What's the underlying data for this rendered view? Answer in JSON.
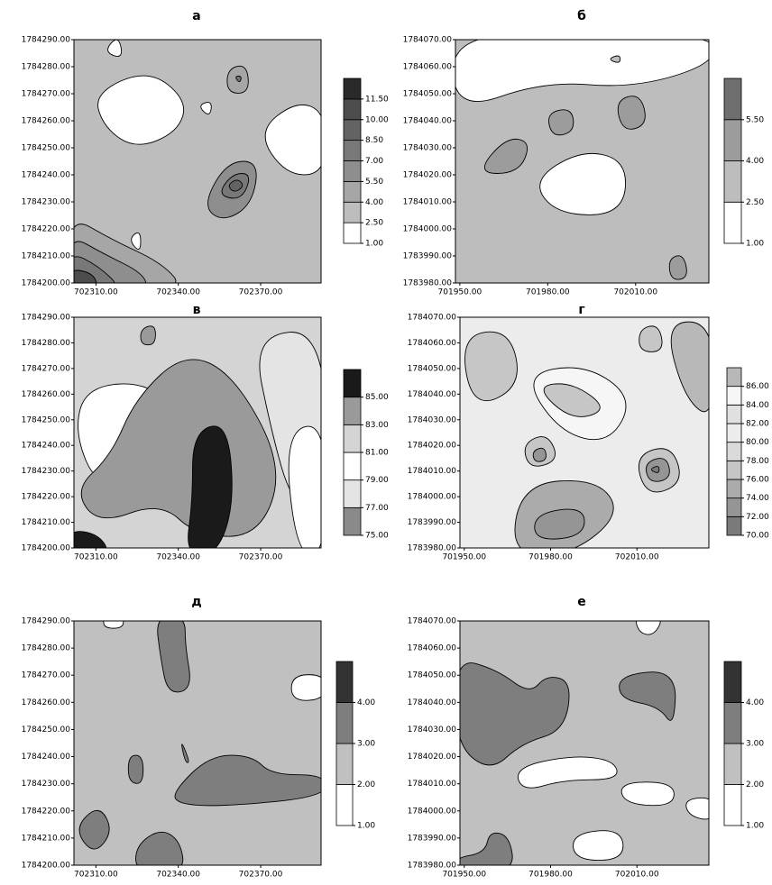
{
  "chart_data": [
    {
      "type": "contour",
      "title": "а",
      "xlim": [
        702302,
        702392
      ],
      "ylim": [
        1784200,
        1784290
      ],
      "xticks": [
        {
          "value": 702310,
          "label": "702310.00"
        },
        {
          "value": 702340,
          "label": "702340.00"
        },
        {
          "value": 702370,
          "label": "702370.00"
        }
      ],
      "yticks": [
        {
          "value": 1784200,
          "label": "1784200.00"
        },
        {
          "value": 1784210,
          "label": "1784210.00"
        },
        {
          "value": 1784220,
          "label": "1784220.00"
        },
        {
          "value": 1784230,
          "label": "1784230.00"
        },
        {
          "value": 1784240,
          "label": "1784240.00"
        },
        {
          "value": 1784250,
          "label": "1784250.00"
        },
        {
          "value": 1784260,
          "label": "1784260.00"
        },
        {
          "value": 1784270,
          "label": "1784270.00"
        },
        {
          "value": 1784280,
          "label": "1784280.00"
        },
        {
          "value": 1784290,
          "label": "1784290.00"
        }
      ],
      "levels": [
        {
          "value": 1,
          "label": "1.00"
        },
        {
          "value": 2.5,
          "label": "2.50"
        },
        {
          "value": 4,
          "label": "4.00"
        },
        {
          "value": 5.5,
          "label": "5.50"
        },
        {
          "value": 7,
          "label": "7.00"
        },
        {
          "value": 8.5,
          "label": "8.50"
        },
        {
          "value": 10,
          "label": "10.00"
        },
        {
          "value": 11.5,
          "label": "11.50"
        }
      ],
      "colors": [
        "#ffffff",
        "#bdbdbd",
        "#a6a6a6",
        "#8e8e8e",
        "#787878",
        "#636363",
        "#4d4d4d",
        "#2a2a2a"
      ]
    },
    {
      "type": "contour",
      "title": "б",
      "xlim": [
        701948.5,
        702035
      ],
      "ylim": [
        1783980,
        1784070
      ],
      "xticks": [
        {
          "value": 701950,
          "label": "701950.00"
        },
        {
          "value": 701980,
          "label": "701980.00"
        },
        {
          "value": 702010,
          "label": "702010.00"
        }
      ],
      "yticks": [
        {
          "value": 1783980,
          "label": "1783980.00"
        },
        {
          "value": 1783990,
          "label": "1783990.00"
        },
        {
          "value": 1784000,
          "label": "1784000.00"
        },
        {
          "value": 1784010,
          "label": "1784010.00"
        },
        {
          "value": 1784020,
          "label": "1784020.00"
        },
        {
          "value": 1784030,
          "label": "1784030.00"
        },
        {
          "value": 1784040,
          "label": "1784040.00"
        },
        {
          "value": 1784050,
          "label": "1784050.00"
        },
        {
          "value": 1784060,
          "label": "1784060.00"
        },
        {
          "value": 1784070,
          "label": "1784070.00"
        }
      ],
      "levels": [
        {
          "value": 1,
          "label": "1.00"
        },
        {
          "value": 2.5,
          "label": "2.50"
        },
        {
          "value": 4,
          "label": "4.00"
        },
        {
          "value": 5.5,
          "label": "5.50"
        }
      ],
      "colors": [
        "#ffffff",
        "#bdbdbd",
        "#9c9c9c",
        "#6e6e6e"
      ]
    },
    {
      "type": "contour",
      "title": "в",
      "xlim": [
        702302,
        702392
      ],
      "ylim": [
        1784200,
        1784290
      ],
      "xticks": [
        {
          "value": 702310,
          "label": "702310.00"
        },
        {
          "value": 702340,
          "label": "702340.00"
        },
        {
          "value": 702370,
          "label": "702370.00"
        }
      ],
      "yticks": [
        {
          "value": 1784200,
          "label": "1784200.00"
        },
        {
          "value": 1784210,
          "label": "1784210.00"
        },
        {
          "value": 1784220,
          "label": "1784220.00"
        },
        {
          "value": 1784230,
          "label": "1784230.00"
        },
        {
          "value": 1784240,
          "label": "1784240.00"
        },
        {
          "value": 1784250,
          "label": "1784250.00"
        },
        {
          "value": 1784260,
          "label": "1784260.00"
        },
        {
          "value": 1784270,
          "label": "1784270.00"
        },
        {
          "value": 1784280,
          "label": "1784280.00"
        },
        {
          "value": 1784290,
          "label": "1784290.00"
        }
      ],
      "levels": [
        {
          "value": 75,
          "label": "75.00"
        },
        {
          "value": 77,
          "label": "77.00"
        },
        {
          "value": 79,
          "label": "79.00"
        },
        {
          "value": 81,
          "label": "81.00"
        },
        {
          "value": 83,
          "label": "83.00"
        },
        {
          "value": 85,
          "label": "85.00"
        }
      ],
      "colors": [
        "#8a8a8a",
        "#e4e4e4",
        "#ffffff",
        "#d4d4d4",
        "#9a9a9a",
        "#1a1a1a"
      ]
    },
    {
      "type": "contour",
      "title": "г",
      "xlim": [
        701948.5,
        702035
      ],
      "ylim": [
        1783980,
        1784070
      ],
      "xticks": [
        {
          "value": 701950,
          "label": "701950.00"
        },
        {
          "value": 701980,
          "label": "701980.00"
        },
        {
          "value": 702010,
          "label": "702010.00"
        }
      ],
      "yticks": [
        {
          "value": 1783980,
          "label": "1783980.00"
        },
        {
          "value": 1783990,
          "label": "1783990.00"
        },
        {
          "value": 1784000,
          "label": "1784000.00"
        },
        {
          "value": 1784010,
          "label": "1784010.00"
        },
        {
          "value": 1784020,
          "label": "1784020.00"
        },
        {
          "value": 1784030,
          "label": "1784030.00"
        },
        {
          "value": 1784040,
          "label": "1784040.00"
        },
        {
          "value": 1784050,
          "label": "1784050.00"
        },
        {
          "value": 1784060,
          "label": "1784060.00"
        },
        {
          "value": 1784070,
          "label": "1784070.00"
        }
      ],
      "levels": [
        {
          "value": 70,
          "label": "70.00"
        },
        {
          "value": 72,
          "label": "72.00"
        },
        {
          "value": 74,
          "label": "74.00"
        },
        {
          "value": 76,
          "label": "76.00"
        },
        {
          "value": 78,
          "label": "78.00"
        },
        {
          "value": 80,
          "label": "80.00"
        },
        {
          "value": 82,
          "label": "82.00"
        },
        {
          "value": 84,
          "label": "84.00"
        },
        {
          "value": 86,
          "label": "86.00"
        }
      ],
      "colors": [
        "#7a7a7a",
        "#959595",
        "#ababab",
        "#c6c6c6",
        "#dadada",
        "#ececec",
        "#e0e0e0",
        "#f6f6f6",
        "#b8b8b8"
      ]
    },
    {
      "type": "contour",
      "title": "д",
      "xlim": [
        702302,
        702392
      ],
      "ylim": [
        1784200,
        1784290
      ],
      "xticks": [
        {
          "value": 702310,
          "label": "702310.00"
        },
        {
          "value": 702340,
          "label": "702340.00"
        },
        {
          "value": 702370,
          "label": "702370.00"
        }
      ],
      "yticks": [
        {
          "value": 1784200,
          "label": "1784200.00"
        },
        {
          "value": 1784210,
          "label": "1784210.00"
        },
        {
          "value": 1784220,
          "label": "1784220.00"
        },
        {
          "value": 1784230,
          "label": "1784230.00"
        },
        {
          "value": 1784240,
          "label": "1784240.00"
        },
        {
          "value": 1784250,
          "label": "1784250.00"
        },
        {
          "value": 1784260,
          "label": "1784260.00"
        },
        {
          "value": 1784270,
          "label": "1784270.00"
        },
        {
          "value": 1784280,
          "label": "1784280.00"
        },
        {
          "value": 1784290,
          "label": "1784290.00"
        }
      ],
      "levels": [
        {
          "value": 1,
          "label": "1.00"
        },
        {
          "value": 2,
          "label": "2.00"
        },
        {
          "value": 3,
          "label": "3.00"
        },
        {
          "value": 4,
          "label": "4.00"
        }
      ],
      "colors": [
        "#ffffff",
        "#c0c0c0",
        "#7e7e7e",
        "#333333"
      ]
    },
    {
      "type": "contour",
      "title": "е",
      "xlim": [
        701948.5,
        702035
      ],
      "ylim": [
        1783980,
        1784070
      ],
      "xticks": [
        {
          "value": 701950,
          "label": "701950.00"
        },
        {
          "value": 701980,
          "label": "701980.00"
        },
        {
          "value": 702010,
          "label": "702010.00"
        }
      ],
      "yticks": [
        {
          "value": 1783980,
          "label": "1783980.00"
        },
        {
          "value": 1783990,
          "label": "1783990.00"
        },
        {
          "value": 1784000,
          "label": "1784000.00"
        },
        {
          "value": 1784010,
          "label": "1784010.00"
        },
        {
          "value": 1784020,
          "label": "1784020.00"
        },
        {
          "value": 1784030,
          "label": "1784030.00"
        },
        {
          "value": 1784040,
          "label": "1784040.00"
        },
        {
          "value": 1784050,
          "label": "1784050.00"
        },
        {
          "value": 1784060,
          "label": "1784060.00"
        },
        {
          "value": 1784070,
          "label": "1784070.00"
        }
      ],
      "levels": [
        {
          "value": 1,
          "label": "1.00"
        },
        {
          "value": 2,
          "label": "2.00"
        },
        {
          "value": 3,
          "label": "3.00"
        },
        {
          "value": 4,
          "label": "4.00"
        }
      ],
      "colors": [
        "#ffffff",
        "#c0c0c0",
        "#7e7e7e",
        "#333333"
      ]
    }
  ]
}
